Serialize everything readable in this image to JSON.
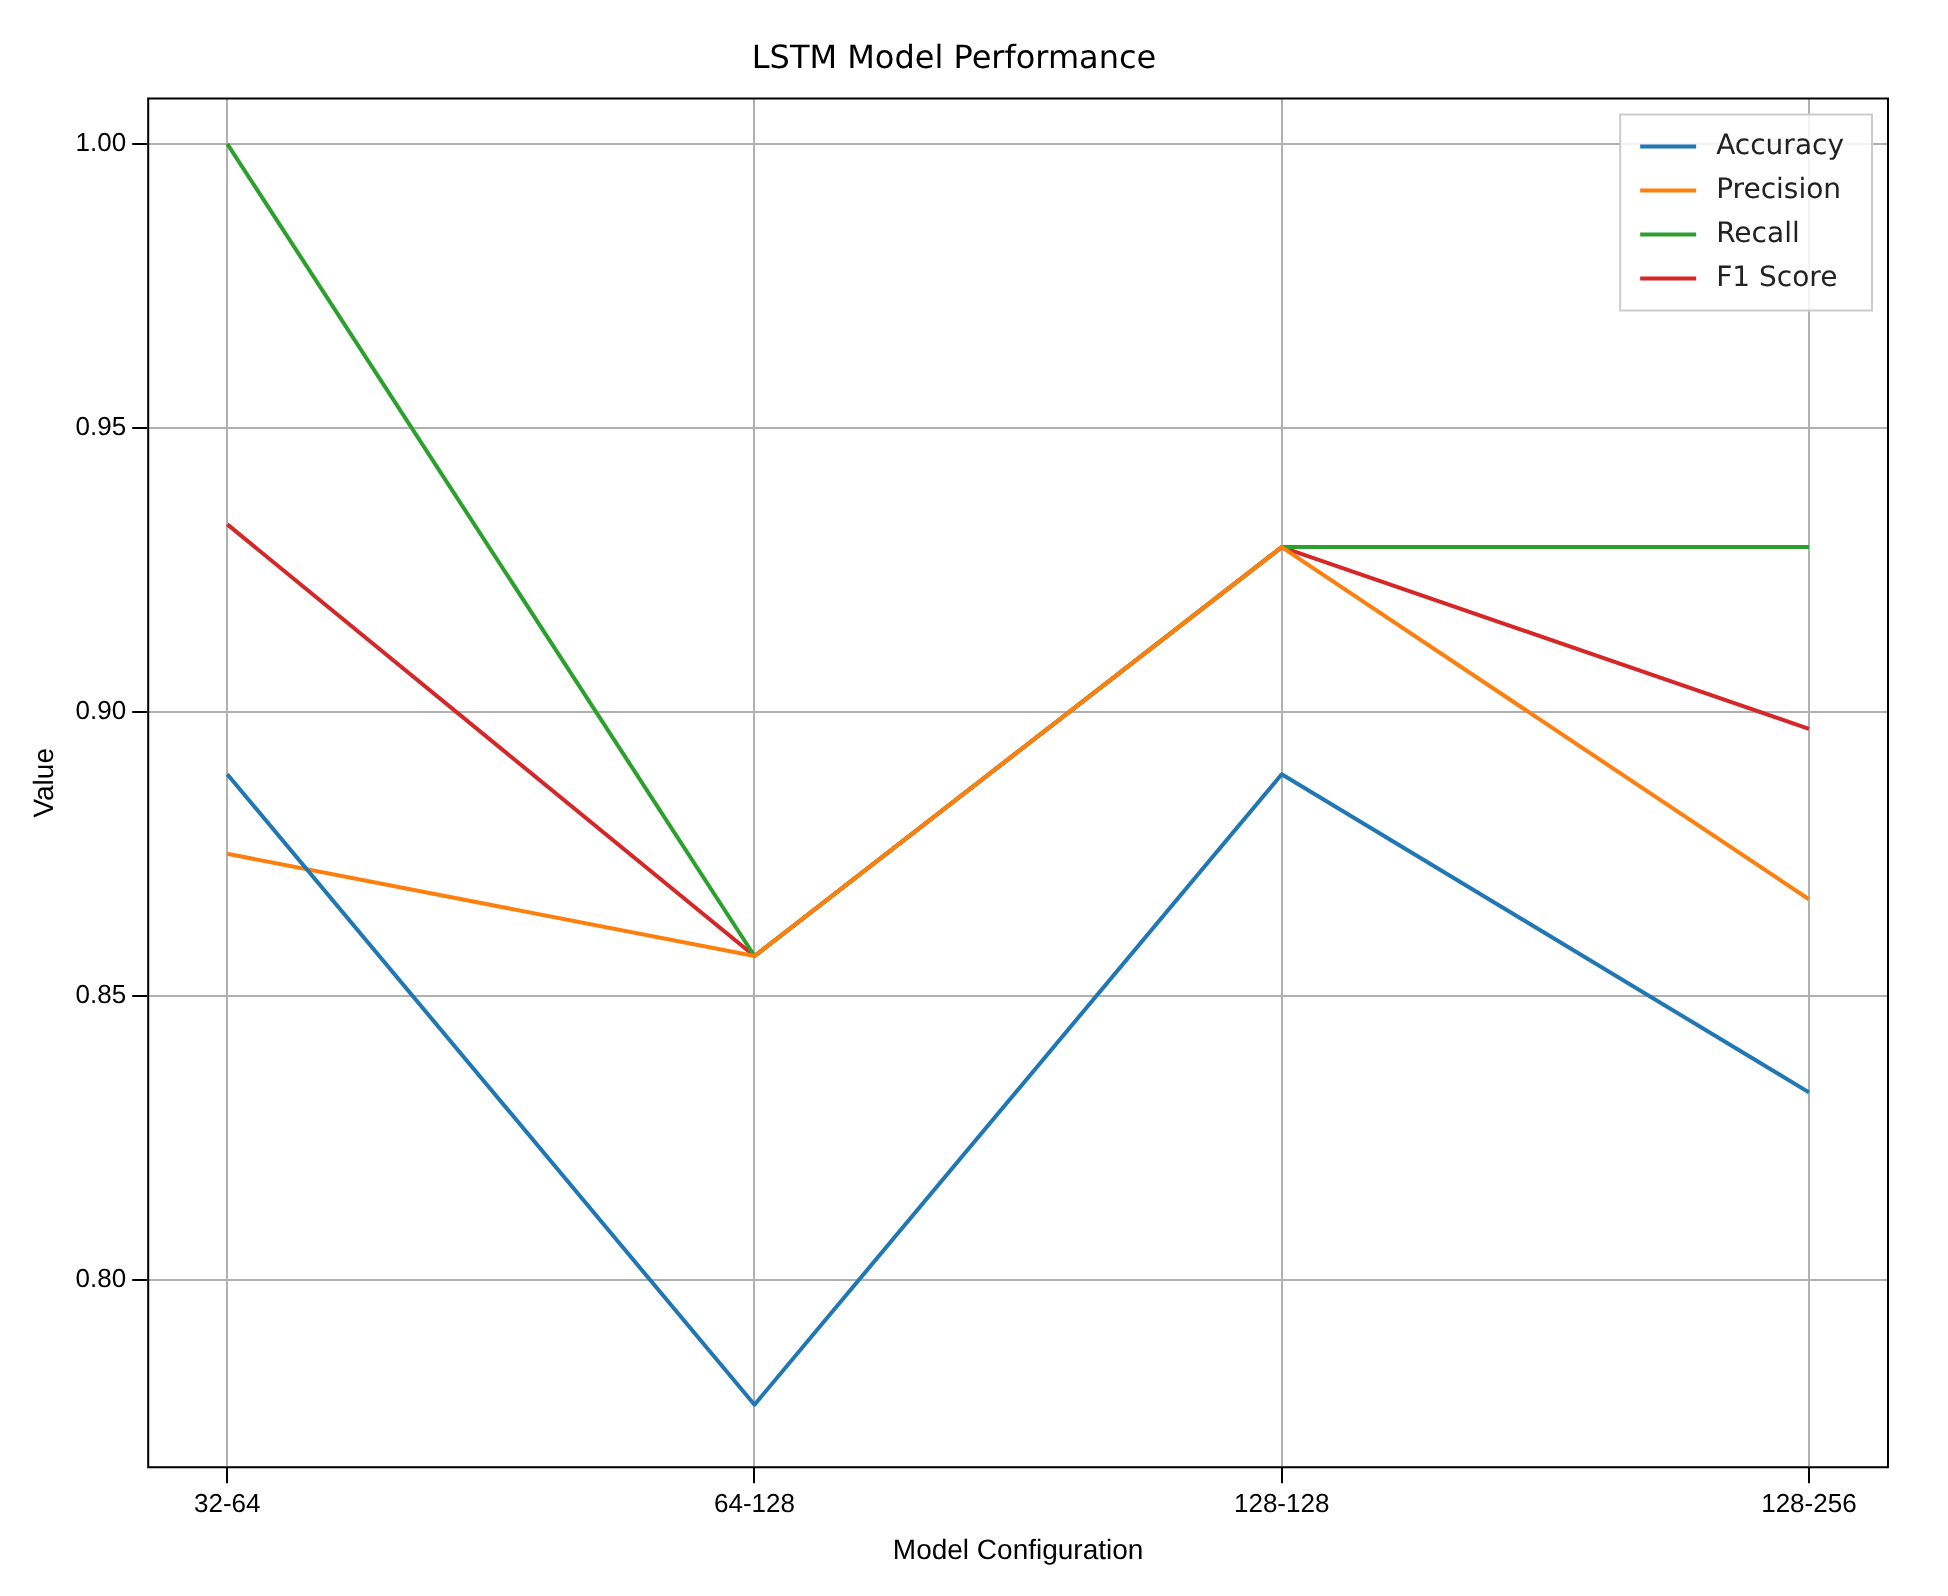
{
  "chart_data": {
    "type": "line",
    "title": "LSTM Model Performance",
    "xlabel": "Model Configuration",
    "ylabel": "Value",
    "categories": [
      "32-64",
      "64-128",
      "128-128",
      "128-256"
    ],
    "series": [
      {
        "name": "Accuracy",
        "color": "#1f77b4",
        "values": [
          0.889,
          0.778,
          0.889,
          0.833
        ]
      },
      {
        "name": "Precision",
        "color": "#ff7f0e",
        "values": [
          0.875,
          0.857,
          0.929,
          0.867
        ]
      },
      {
        "name": "Recall",
        "color": "#2ca02c",
        "values": [
          1.0,
          0.857,
          0.929,
          0.929
        ]
      },
      {
        "name": "F1 Score",
        "color": "#d62728",
        "values": [
          0.933,
          0.857,
          0.929,
          0.897
        ]
      }
    ],
    "ylim": [
      0.767,
      1.008
    ],
    "yticks": [
      {
        "value": 0.8,
        "label": "0.80"
      },
      {
        "value": 0.85,
        "label": "0.85"
      },
      {
        "value": 0.9,
        "label": "0.90"
      },
      {
        "value": 0.95,
        "label": "0.95"
      },
      {
        "value": 1.0,
        "label": "1.00"
      }
    ],
    "grid": true,
    "legend": "top right",
    "marker": "none",
    "line_style": "solid"
  }
}
